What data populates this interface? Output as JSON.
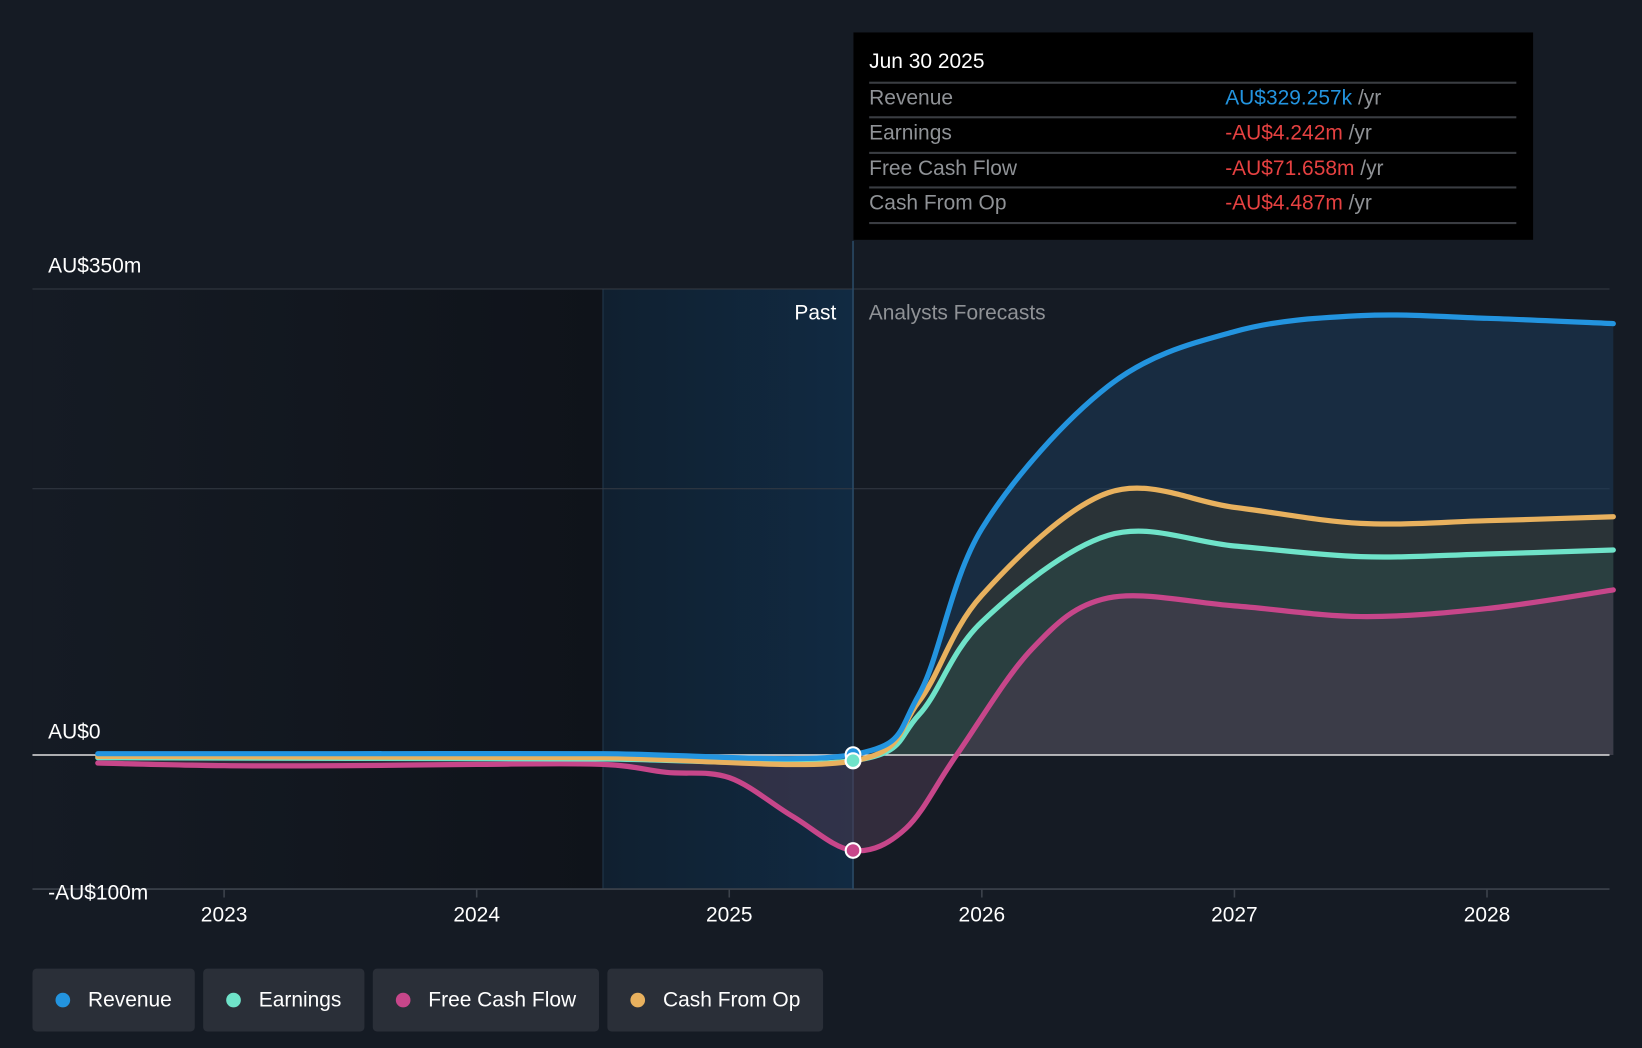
{
  "tooltip": {
    "date": "Jun 30 2025",
    "rows": [
      {
        "label": "Revenue",
        "value": "AU$329.257k",
        "unit": "/yr",
        "color": "#2394df"
      },
      {
        "label": "Earnings",
        "value": "-AU$4.242m",
        "unit": "/yr",
        "color": "#e64141"
      },
      {
        "label": "Free Cash Flow",
        "value": "-AU$71.658m",
        "unit": "/yr",
        "color": "#e64141"
      },
      {
        "label": "Cash From Op",
        "value": "-AU$4.487m",
        "unit": "/yr",
        "color": "#e64141"
      }
    ]
  },
  "chart_data": {
    "type": "line",
    "title": "",
    "xlabel": "",
    "ylabel": "",
    "xlim": [
      2022.25,
      2028.5
    ],
    "ylim": [
      -100,
      350
    ],
    "y_ticks": [
      {
        "v": 350,
        "label": "AU$350m"
      },
      {
        "v": 0,
        "label": "AU$0"
      },
      {
        "v": -100,
        "label": "-AU$100m"
      }
    ],
    "grid_values": [
      350,
      200
    ],
    "x_ticks": [
      {
        "v": 2023,
        "label": "2023"
      },
      {
        "v": 2024,
        "label": "2024"
      },
      {
        "v": 2025,
        "label": "2025"
      },
      {
        "v": 2026,
        "label": "2026"
      },
      {
        "v": 2027,
        "label": "2027"
      },
      {
        "v": 2028,
        "label": "2028"
      }
    ],
    "past_label": "Past",
    "forecast_label": "Analysts Forecasts",
    "divider_x": 2025.49,
    "highlight_start_x": 2024.5,
    "series": [
      {
        "name": "Revenue",
        "color": "#2394df",
        "x": [
          2022.5,
          2023.5,
          2024.5,
          2025.49,
          2025.75,
          2026,
          2026.5,
          2027,
          2027.5,
          2028,
          2028.5
        ],
        "y": [
          1,
          1,
          1,
          0.33,
          45,
          170,
          277,
          318,
          330,
          328,
          324
        ]
      },
      {
        "name": "Cash From Op",
        "color": "#e8b15e",
        "x": [
          2022.5,
          2023.5,
          2024.5,
          2025.49,
          2025.75,
          2026,
          2026.5,
          2027,
          2027.5,
          2028,
          2028.5
        ],
        "y": [
          -1,
          -1.5,
          -2,
          -4.5,
          40,
          120,
          197,
          186,
          174,
          176,
          179
        ]
      },
      {
        "name": "Earnings",
        "color": "#6fe3c9",
        "x": [
          2022.5,
          2023.5,
          2024.5,
          2025.49,
          2025.75,
          2026,
          2026.5,
          2027,
          2027.5,
          2028,
          2028.5
        ],
        "y": [
          -2,
          -2.5,
          -3,
          -4.2,
          30,
          100,
          165,
          157,
          149,
          151,
          154
        ]
      },
      {
        "name": "Free Cash Flow",
        "color": "#c7468a",
        "x": [
          2022.5,
          2023,
          2023.5,
          2024,
          2024.5,
          2024.75,
          2025,
          2025.25,
          2025.49,
          2025.7,
          2025.9,
          2026.2,
          2026.5,
          2027,
          2027.5,
          2028,
          2028.5
        ],
        "y": [
          -6,
          -8,
          -8,
          -7,
          -7,
          -13,
          -17,
          -46,
          -71.7,
          -55,
          0,
          80,
          118,
          112,
          104,
          110,
          124
        ]
      }
    ],
    "markers_x": 2025.49
  },
  "legend": [
    {
      "label": "Revenue",
      "color": "#2394df"
    },
    {
      "label": "Earnings",
      "color": "#6fe3c9"
    },
    {
      "label": "Free Cash Flow",
      "color": "#c7468a"
    },
    {
      "label": "Cash From Op",
      "color": "#e8b15e"
    }
  ]
}
